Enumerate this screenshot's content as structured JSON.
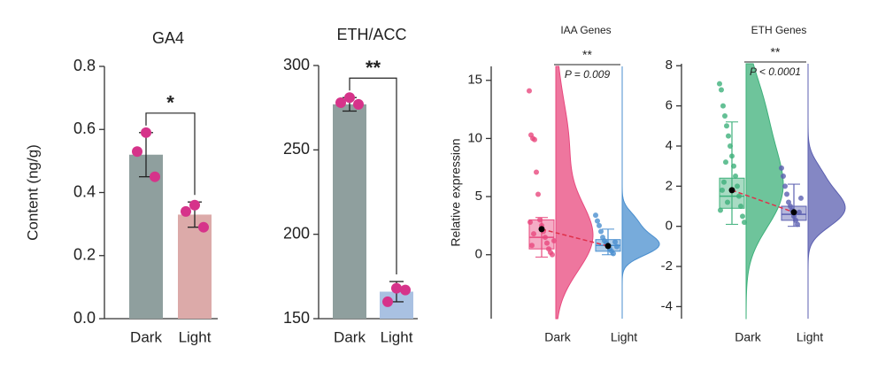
{
  "chart_data": [
    {
      "type": "bar",
      "title": "GA4",
      "y_label": "Content (ng/g)",
      "annotation": "*",
      "categories": [
        "Dark",
        "Light"
      ],
      "values": [
        0.52,
        0.33
      ],
      "errors": [
        0.07,
        0.04
      ],
      "points": [
        [
          0.59,
          0.53,
          0.45
        ],
        [
          0.36,
          0.34,
          0.29
        ]
      ],
      "colors": [
        "#8f9f9e",
        "#dcaaa9"
      ],
      "point_color": "#d6338a",
      "ylim": [
        0,
        0.8
      ],
      "yticks": [
        {
          "value": 0,
          "label": "0.0"
        },
        0.2,
        0.4,
        0.6,
        0.8
      ]
    },
    {
      "type": "bar",
      "title": "ETH/ACC",
      "annotation": "**",
      "categories": [
        "Dark",
        "Light"
      ],
      "values": [
        277,
        166
      ],
      "errors": [
        4,
        6
      ],
      "points": [
        [
          281,
          278,
          277
        ],
        [
          168,
          160,
          167
        ]
      ],
      "colors": [
        "#8f9f9e",
        "#a9c1e2"
      ],
      "point_color": "#d6338a",
      "ylim": [
        150,
        300
      ],
      "yticks": [
        150,
        200,
        250,
        300
      ]
    },
    {
      "type": "raincloud",
      "title": "IAA Genes",
      "y_label": "Relative expression",
      "annotation": "**",
      "p_value": "P = 0.009",
      "categories": [
        "Dark",
        "Light"
      ],
      "colors": [
        "#e8487e",
        "#4a8fcf"
      ],
      "groups": [
        {
          "q1": 0.5,
          "median": 1.5,
          "q3": 3.0,
          "whisker_low": -0.2,
          "whisker_high": 3.2,
          "mean": 2.2,
          "points": [
            14.1,
            10.3,
            10.0,
            9.9,
            7.1,
            5.2,
            3.0,
            2.5,
            2.0,
            1.5,
            1.0,
            0.5,
            0.2,
            0,
            1.2,
            2.8,
            0.8,
            1.8
          ]
        },
        {
          "q1": 0.3,
          "median": 0.8,
          "q3": 1.3,
          "whisker_low": 0,
          "whisker_high": 2.2,
          "mean": 0.75,
          "points": [
            3.4,
            2.9,
            2.5,
            2.0,
            1.5,
            1.2,
            1.0,
            0.8,
            0.5,
            0.3,
            0.1,
            1.1,
            0.7
          ]
        }
      ],
      "ylim": [
        -5.5,
        16.2
      ],
      "yticks": [
        0,
        5,
        10,
        15
      ]
    },
    {
      "type": "raincloud",
      "title": "ETH Genes",
      "annotation": "**",
      "p_value": "P < 0.0001",
      "categories": [
        "Dark",
        "Light"
      ],
      "colors": [
        "#3db07a",
        "#5b5fb0"
      ],
      "groups": [
        {
          "q1": 0.9,
          "median": 1.5,
          "q3": 2.4,
          "whisker_low": 0.1,
          "whisker_high": 5.2,
          "mean": 1.8,
          "points": [
            7.1,
            6.8,
            6.0,
            5.5,
            5.0,
            4.5,
            4.0,
            3.5,
            3.0,
            2.5,
            2.0,
            1.5,
            1.0,
            0.5,
            0.2,
            0.8,
            1.8,
            2.2,
            3.2,
            1.2
          ]
        },
        {
          "q1": 0.3,
          "median": 0.6,
          "q3": 1.0,
          "whisker_low": 0,
          "whisker_high": 2.1,
          "mean": 0.7,
          "points": [
            2.9,
            2.5,
            2.0,
            1.6,
            1.2,
            1.0,
            0.8,
            0.5,
            0.3,
            0.1,
            0.7,
            1.4
          ]
        }
      ],
      "ylim": [
        -4.6,
        8.1
      ],
      "yticks": [
        -4,
        -2,
        0,
        2,
        4,
        6,
        8
      ]
    }
  ]
}
